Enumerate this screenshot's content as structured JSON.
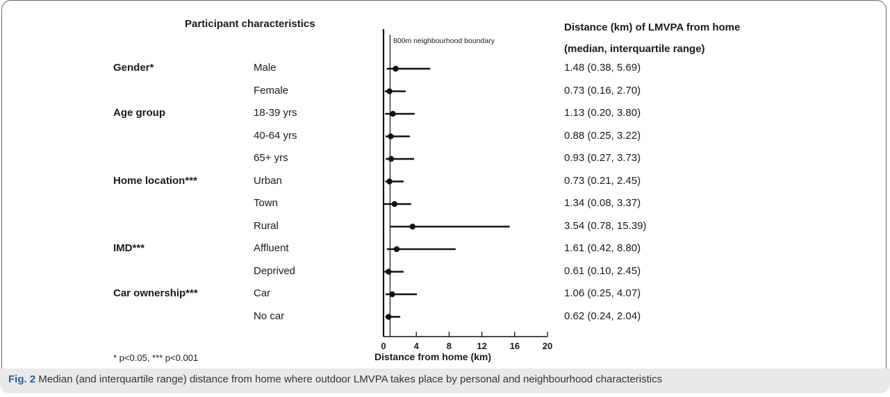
{
  "headers": {
    "participant": "Participant  characteristics",
    "distance_line1": "Distance (km) of LMVPA from home",
    "distance_line2": "(median, interquartile range)"
  },
  "groups": [
    {
      "label": "Gender*",
      "row": 0
    },
    {
      "label": "Age group",
      "row": 2
    },
    {
      "label": "Home location***",
      "row": 5
    },
    {
      "label": "IMD***",
      "row": 8
    },
    {
      "label": "Car ownership***",
      "row": 10
    }
  ],
  "rows": [
    {
      "category": "Male",
      "text": "1.48 (0.38, 5.69)"
    },
    {
      "category": "Female",
      "text": "0.73 (0.16, 2.70)"
    },
    {
      "category": "18-39 yrs",
      "text": "1.13 (0.20, 3.80)"
    },
    {
      "category": "40-64 yrs",
      "text": "0.88 (0.25, 3.22)"
    },
    {
      "category": "65+ yrs",
      "text": "0.93 (0.27, 3.73)"
    },
    {
      "category": "Urban",
      "text": "0.73 (0.21, 2.45)"
    },
    {
      "category": "Town",
      "text": "1.34 (0.08, 3.37)"
    },
    {
      "category": "Rural",
      "text": "3.54 (0.78, 15.39)"
    },
    {
      "category": "Affluent",
      "text": "1.61 (0.42, 8.80)"
    },
    {
      "category": "Deprived",
      "text": "0.61 (0.10, 2.45)"
    },
    {
      "category": "Car",
      "text": "1.06 (0.25, 4.07)"
    },
    {
      "category": "No car",
      "text": "0.62 (0.24, 2.04)"
    }
  ],
  "footnote": "* p<0.05, *** p<0.001",
  "caption": {
    "label": "Fig. 2",
    "text": " Median (and interquartile range) distance from home where outdoor LMVPA takes place by personal and neighbourhood characteristics"
  },
  "chart_data": {
    "type": "scatter",
    "subtype": "forest-plot",
    "xlabel": "Distance from home (km)",
    "xlim": [
      0,
      20
    ],
    "xticks": [
      0,
      4,
      8,
      12,
      16,
      20
    ],
    "reference_line": {
      "x": 0.8,
      "label": "800m neighbourhood boundary"
    },
    "categories": [
      "Male",
      "Female",
      "18-39 yrs",
      "40-64 yrs",
      "65+ yrs",
      "Urban",
      "Town",
      "Rural",
      "Affluent",
      "Deprived",
      "Car",
      "No car"
    ],
    "median": [
      1.48,
      0.73,
      1.13,
      0.88,
      0.93,
      0.73,
      1.34,
      3.54,
      1.61,
      0.61,
      1.06,
      0.62
    ],
    "q1": [
      0.38,
      0.16,
      0.2,
      0.25,
      0.27,
      0.21,
      0.08,
      0.78,
      0.42,
      0.1,
      0.25,
      0.24
    ],
    "q3": [
      5.69,
      2.7,
      3.8,
      3.22,
      3.73,
      2.45,
      3.37,
      15.39,
      8.8,
      2.45,
      4.07,
      2.04
    ],
    "grid": false,
    "legend": "none"
  }
}
